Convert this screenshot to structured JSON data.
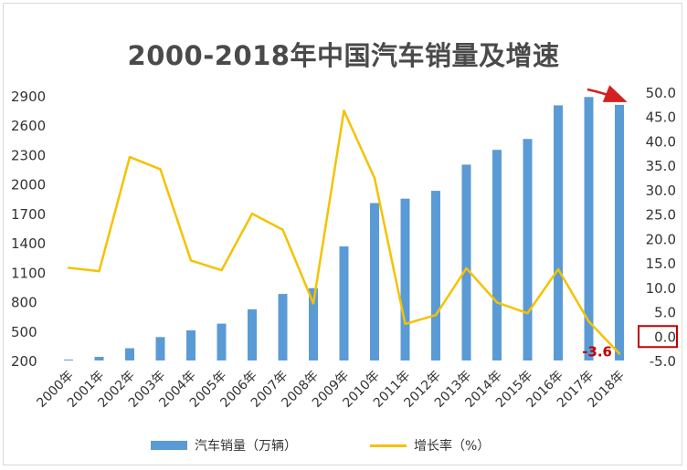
{
  "chart_data": {
    "type": "bar+line",
    "title": "2000-2018年中国汽车销量及增速",
    "categories": [
      "2000年",
      "2001年",
      "2002年",
      "2003年",
      "2004年",
      "2005年",
      "2006年",
      "2007年",
      "2008年",
      "2009年",
      "2010年",
      "2011年",
      "2012年",
      "2013年",
      "2014年",
      "2015年",
      "2016年",
      "2017年",
      "2018年"
    ],
    "series": [
      {
        "name": "汽车销量（万辆）",
        "type": "bar",
        "axis": "left",
        "color": "#5b9bd5",
        "values": [
          209,
          237,
          325,
          439,
          507,
          576,
          722,
          879,
          938,
          1364,
          1806,
          1851,
          1931,
          2198,
          2349,
          2460,
          2803,
          2888,
          2808
        ]
      },
      {
        "name": "增长率（%）",
        "type": "line",
        "axis": "right",
        "color": "#f5c200",
        "values": [
          14.0,
          13.3,
          36.7,
          34.2,
          15.5,
          13.5,
          25.1,
          21.8,
          6.7,
          46.2,
          32.4,
          2.5,
          4.3,
          13.9,
          6.9,
          4.7,
          13.7,
          3.0,
          -3.6
        ]
      }
    ],
    "y_left": {
      "ticks": [
        200,
        500,
        800,
        1100,
        1400,
        1700,
        2000,
        2300,
        2600,
        2900
      ],
      "min": 200,
      "max": 2900
    },
    "y_right": {
      "ticks": [
        "-5.0",
        "0.0",
        "5.0",
        "10.0",
        "15.0",
        "20.0",
        "25.0",
        "30.0",
        "35.0",
        "40.0",
        "45.0",
        "50.0"
      ],
      "min": -5,
      "max": 50
    },
    "annotation": {
      "label": "-3.6",
      "color": "#c00000"
    },
    "highlight_tick": "0.0",
    "grid": false,
    "legend_position": "bottom"
  }
}
